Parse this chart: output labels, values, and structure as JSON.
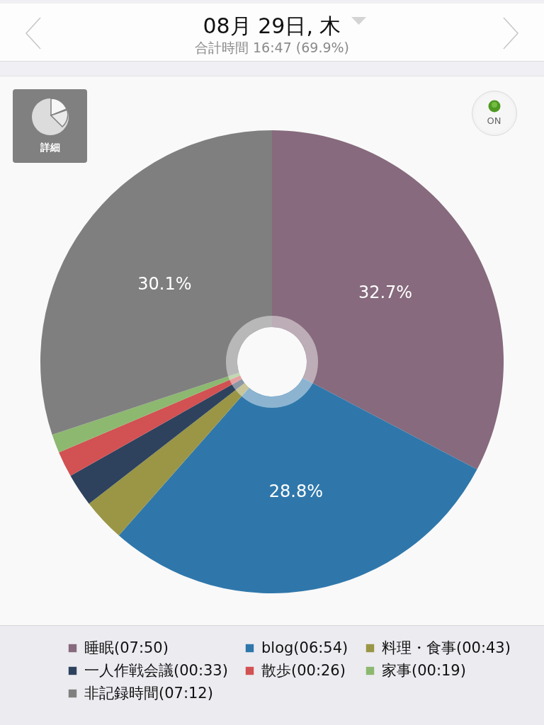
{
  "chart_data": {
    "type": "donut",
    "title": "08月 29日, 木",
    "subtitle": "合計時間 16:47 (69.9%)",
    "categories": [
      "睡眠(07:50)",
      "blog(06:54)",
      "料理・食事(00:43)",
      "一人作戦会議(00:33)",
      "散歩(00:26)",
      "家事(00:19)",
      "非記録時間(07:12)"
    ],
    "values": [
      32.7,
      28.8,
      3.0,
      2.3,
      1.8,
      1.3,
      30.1
    ],
    "colors": [
      "#876a7d",
      "#2f77ab",
      "#9a9646",
      "#2e425e",
      "#d25152",
      "#8db870",
      "#7f7f7f"
    ],
    "value_labels": [
      "32.7%",
      "28.8%",
      null,
      null,
      null,
      null,
      "30.1%"
    ],
    "legend": "bottom",
    "annotations": [
      "詳細",
      "ON"
    ]
  }
}
